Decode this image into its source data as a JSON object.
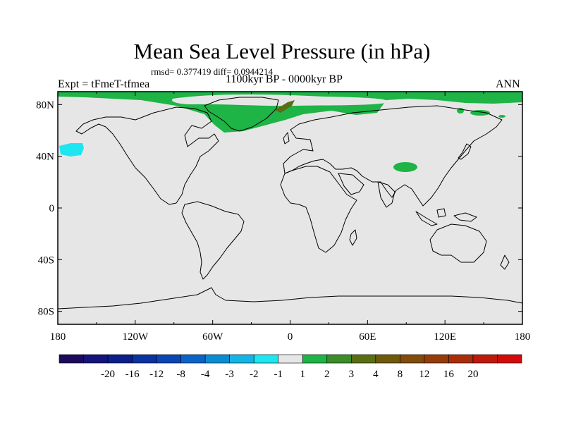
{
  "header": {
    "title": "Mean Sea Level Pressure (in hPa)",
    "subtitle": "rmsd= 0.377419 diff= 0.0944214",
    "experiment": "Expt = tFmeT-tfmea",
    "period": "1100kyr BP - 0000kyr BP",
    "season": "ANN"
  },
  "map": {
    "lat_ticks": [
      {
        "value": 80,
        "label": "80N"
      },
      {
        "value": 40,
        "label": "40N"
      },
      {
        "value": 0,
        "label": "0"
      },
      {
        "value": -40,
        "label": "40S"
      },
      {
        "value": -80,
        "label": "80S"
      }
    ],
    "lon_ticks": [
      {
        "value": -180,
        "label": "180"
      },
      {
        "value": -120,
        "label": "120W"
      },
      {
        "value": -60,
        "label": "60W"
      },
      {
        "value": 0,
        "label": "0"
      },
      {
        "value": 60,
        "label": "60E"
      },
      {
        "value": 120,
        "label": "120E"
      },
      {
        "value": 180,
        "label": "180"
      }
    ],
    "land_color": "#e6e6e6",
    "coastline_color": "#000000"
  },
  "colorbar": {
    "colors": [
      "#1c0a5c",
      "#14147a",
      "#0a1e8c",
      "#0a32a0",
      "#0a46b4",
      "#0a64c8",
      "#0a8cd2",
      "#14b4e6",
      "#1ee6f0",
      "#e6e6e6",
      "#1eb446",
      "#3c8c28",
      "#5a6e14",
      "#6e5a0a",
      "#824b0a",
      "#963c0a",
      "#aa2d0a",
      "#be190a",
      "#d20a0a"
    ],
    "labels": [
      "-20",
      "-16",
      "-12",
      "-8",
      "-4",
      "-3",
      "-2",
      "-1",
      "1",
      "2",
      "3",
      "4",
      "8",
      "12",
      "16",
      "20"
    ]
  }
}
